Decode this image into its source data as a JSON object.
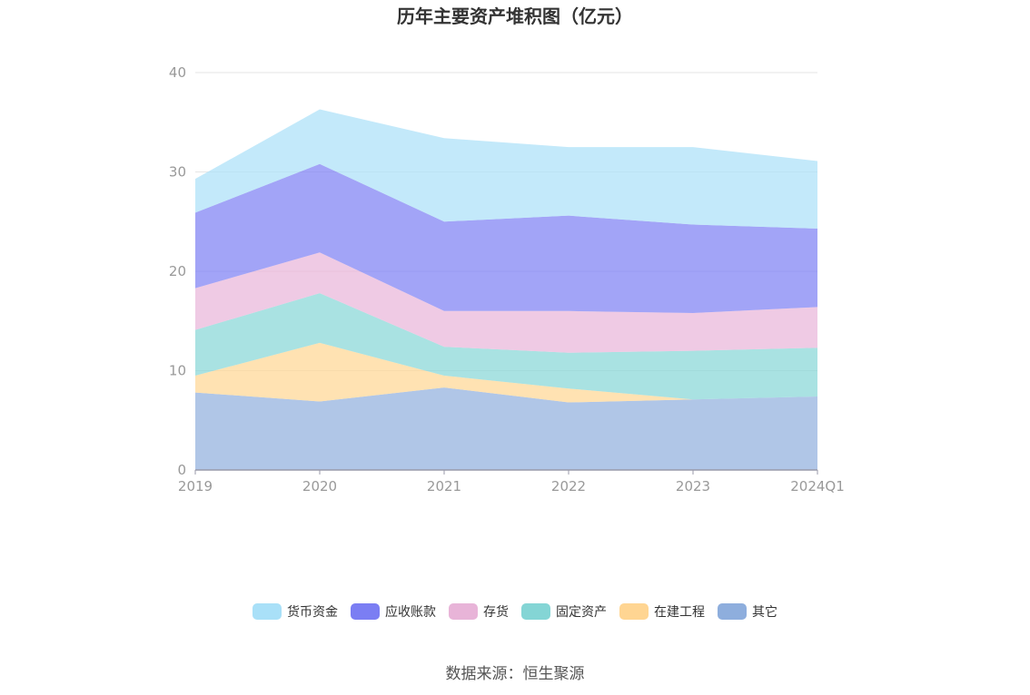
{
  "chart_data": {
    "type": "area",
    "stacked": true,
    "title": "历年主要资产堆积图（亿元）",
    "categories": [
      "2019",
      "2020",
      "2021",
      "2022",
      "2023",
      "2024Q1"
    ],
    "ylim": [
      0,
      40
    ],
    "yticks": [
      0,
      10,
      20,
      30,
      40
    ],
    "grid": true,
    "legend_position": "bottom",
    "series": [
      {
        "name": "其它",
        "color": "#8eaedd",
        "values": [
          7.8,
          6.9,
          8.3,
          6.8,
          7.1,
          7.4
        ]
      },
      {
        "name": "在建工程",
        "color": "#ffd592",
        "values": [
          1.7,
          5.9,
          1.2,
          1.4,
          0.0,
          0.0
        ]
      },
      {
        "name": "固定资产",
        "color": "#84d5d5",
        "values": [
          4.6,
          5.0,
          2.9,
          3.6,
          4.9,
          4.9
        ]
      },
      {
        "name": "存货",
        "color": "#e8b4d8",
        "values": [
          4.2,
          4.1,
          3.6,
          4.2,
          3.8,
          4.1
        ]
      },
      {
        "name": "应收账款",
        "color": "#7b7ef3",
        "values": [
          7.6,
          8.9,
          9.0,
          9.6,
          8.9,
          7.9
        ]
      },
      {
        "name": "货币资金",
        "color": "#a9e0f8",
        "values": [
          3.4,
          5.5,
          8.4,
          6.9,
          7.8,
          6.8
        ]
      }
    ]
  },
  "legend_order": [
    "货币资金",
    "应收账款",
    "存货",
    "固定资产",
    "在建工程",
    "其它"
  ],
  "source": "数据来源：恒生聚源"
}
